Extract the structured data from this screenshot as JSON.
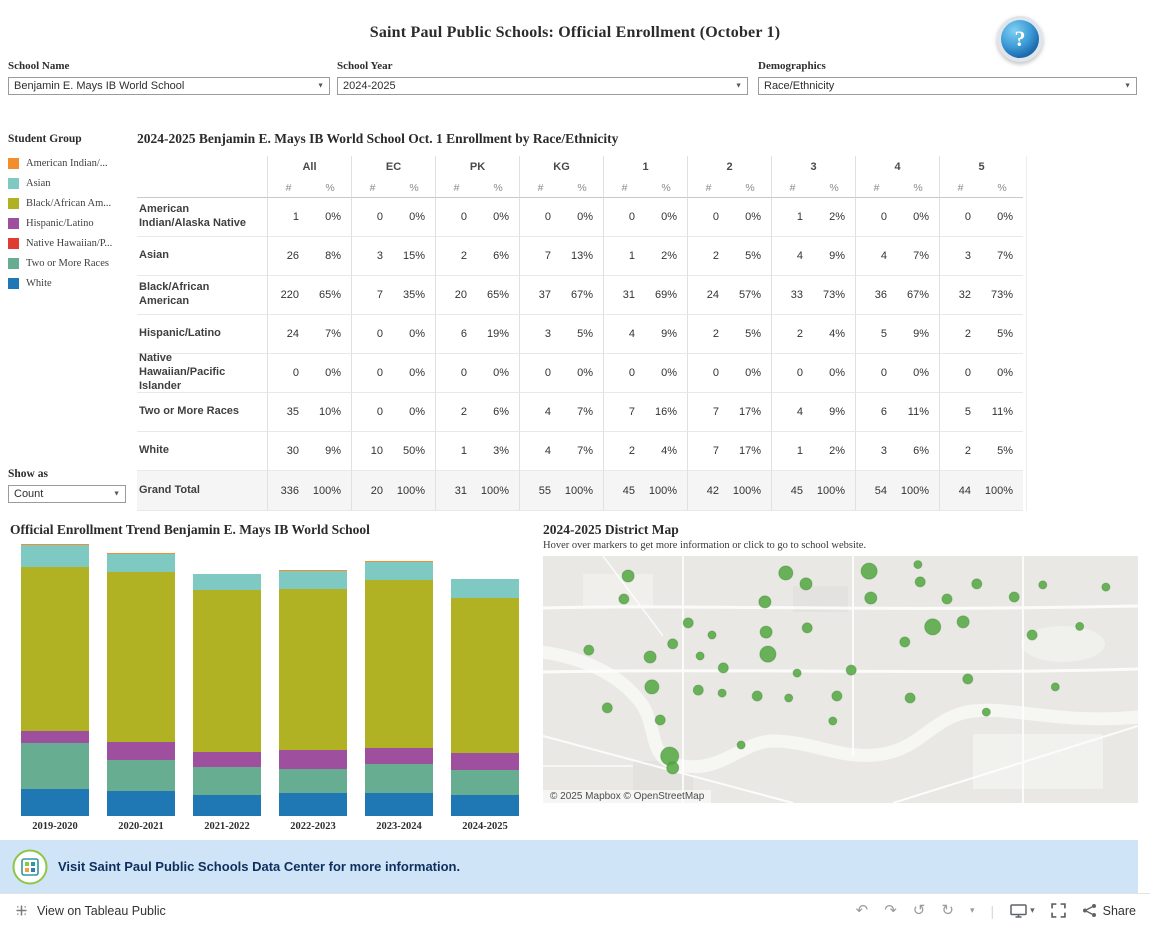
{
  "header": {
    "title": "Saint Paul Public Schools: Official Enrollment (October 1)",
    "help_glyph": "?"
  },
  "ui": {
    "dropdown_caret": "▼"
  },
  "filters": [
    {
      "label": "School Name",
      "value": "Benjamin E. Mays IB World School"
    },
    {
      "label": "School Year",
      "value": "2024-2025"
    },
    {
      "label": "Demographics",
      "value": "Race/Ethnicity"
    }
  ],
  "legend": {
    "title": "Student Group",
    "items": [
      {
        "label": "American Indian/...",
        "color": "#f28e2b"
      },
      {
        "label": "Asian",
        "color": "#7ecac3"
      },
      {
        "label": "Black/African Am...",
        "color": "#b0b123"
      },
      {
        "label": "Hispanic/Latino",
        "color": "#9e4f9d"
      },
      {
        "label": "Native Hawaiian/P...",
        "color": "#e03c31"
      },
      {
        "label": "Two or More Races",
        "color": "#66ad92"
      },
      {
        "label": "White",
        "color": "#1f77b4"
      }
    ],
    "show_as_label": "Show as",
    "show_as_value": "Count"
  },
  "table": {
    "title": "2024-2025 Benjamin E. Mays IB World School Oct. 1 Enrollment by Race/Ethnicity",
    "column_groups": [
      "All",
      "EC",
      "PK",
      "KG",
      "1",
      "2",
      "3",
      "4",
      "5"
    ],
    "sub_columns": [
      "#",
      "%"
    ],
    "rows": [
      {
        "label": "American Indian/Alaska Native",
        "cells": [
          "1",
          "0%",
          "0",
          "0%",
          "0",
          "0%",
          "0",
          "0%",
          "0",
          "0%",
          "0",
          "0%",
          "1",
          "2%",
          "0",
          "0%",
          "0",
          "0%"
        ]
      },
      {
        "label": "Asian",
        "cells": [
          "26",
          "8%",
          "3",
          "15%",
          "2",
          "6%",
          "7",
          "13%",
          "1",
          "2%",
          "2",
          "5%",
          "4",
          "9%",
          "4",
          "7%",
          "3",
          "7%"
        ]
      },
      {
        "label": "Black/African American",
        "cells": [
          "220",
          "65%",
          "7",
          "35%",
          "20",
          "65%",
          "37",
          "67%",
          "31",
          "69%",
          "24",
          "57%",
          "33",
          "73%",
          "36",
          "67%",
          "32",
          "73%"
        ]
      },
      {
        "label": "Hispanic/Latino",
        "cells": [
          "24",
          "7%",
          "0",
          "0%",
          "6",
          "19%",
          "3",
          "5%",
          "4",
          "9%",
          "2",
          "5%",
          "2",
          "4%",
          "5",
          "9%",
          "2",
          "5%"
        ]
      },
      {
        "label": "Native Hawaiian/Pacific Islander",
        "cells": [
          "0",
          "0%",
          "0",
          "0%",
          "0",
          "0%",
          "0",
          "0%",
          "0",
          "0%",
          "0",
          "0%",
          "0",
          "0%",
          "0",
          "0%",
          "0",
          "0%"
        ]
      },
      {
        "label": "Two or More Races",
        "cells": [
          "35",
          "10%",
          "0",
          "0%",
          "2",
          "6%",
          "4",
          "7%",
          "7",
          "16%",
          "7",
          "17%",
          "4",
          "9%",
          "6",
          "11%",
          "5",
          "11%"
        ]
      },
      {
        "label": "White",
        "cells": [
          "30",
          "9%",
          "10",
          "50%",
          "1",
          "3%",
          "4",
          "7%",
          "2",
          "4%",
          "7",
          "17%",
          "1",
          "2%",
          "3",
          "6%",
          "2",
          "5%"
        ]
      },
      {
        "label": "Grand Total",
        "total": true,
        "cells": [
          "336",
          "100%",
          "20",
          "100%",
          "31",
          "100%",
          "55",
          "100%",
          "45",
          "100%",
          "42",
          "100%",
          "45",
          "100%",
          "54",
          "100%",
          "44",
          "100%"
        ]
      }
    ]
  },
  "chart_data": {
    "type": "bar",
    "stacked": true,
    "title": "Official Enrollment Trend Benjamin E. Mays IB World School",
    "categories": [
      "2019-2020",
      "2020-2021",
      "2021-2022",
      "2022-2023",
      "2023-2024",
      "2024-2025"
    ],
    "series": [
      {
        "name": "White",
        "color": "#1f77b4",
        "values": [
          38,
          35,
          30,
          32,
          32,
          30
        ]
      },
      {
        "name": "Two or More Races",
        "color": "#66ad92",
        "values": [
          65,
          45,
          40,
          35,
          42,
          35
        ]
      },
      {
        "name": "Hispanic/Latino",
        "color": "#9e4f9d",
        "values": [
          18,
          25,
          20,
          26,
          22,
          24
        ]
      },
      {
        "name": "Black/African American",
        "color": "#b0b123",
        "values": [
          232,
          240,
          230,
          228,
          238,
          220
        ]
      },
      {
        "name": "Asian",
        "color": "#7ecac3",
        "values": [
          30,
          26,
          22,
          26,
          26,
          26
        ]
      },
      {
        "name": "American Indian/Alaska Native",
        "color": "#f28e2b",
        "values": [
          2,
          2,
          1,
          1,
          1,
          1
        ]
      }
    ],
    "xlabel": "",
    "ylabel": "",
    "legend_position": "left-panel",
    "grid": false
  },
  "map": {
    "title": "2024-2025 District Map",
    "subtitle": "Hover over markers to get more information or click to go to school website.",
    "attribution": "© 2025 Mapbox  © OpenStreetMap",
    "marker_color": "#56a944",
    "markers": [
      [
        14.3,
        8.1,
        6
      ],
      [
        13.6,
        17.4,
        5
      ],
      [
        40.8,
        6.9,
        7
      ],
      [
        44.2,
        11.3,
        6
      ],
      [
        54.8,
        6.1,
        8
      ],
      [
        63.0,
        3.5,
        4
      ],
      [
        63.4,
        10.5,
        5
      ],
      [
        72.9,
        11.3,
        5
      ],
      [
        84.0,
        11.7,
        4
      ],
      [
        94.6,
        12.6,
        4
      ],
      [
        37.3,
        18.6,
        6
      ],
      [
        55.1,
        17.0,
        6
      ],
      [
        67.9,
        17.4,
        5
      ],
      [
        79.2,
        16.6,
        5
      ],
      [
        24.4,
        27.1,
        5
      ],
      [
        28.4,
        32.0,
        4
      ],
      [
        21.8,
        35.6,
        5
      ],
      [
        26.4,
        40.5,
        4
      ],
      [
        37.5,
        30.8,
        6
      ],
      [
        44.4,
        29.1,
        5
      ],
      [
        65.5,
        28.7,
        8
      ],
      [
        70.6,
        26.7,
        6
      ],
      [
        60.8,
        34.8,
        5
      ],
      [
        82.2,
        32.0,
        5
      ],
      [
        90.2,
        28.5,
        4
      ],
      [
        7.7,
        38.1,
        5
      ],
      [
        18.0,
        40.9,
        6
      ],
      [
        37.8,
        39.7,
        8
      ],
      [
        30.3,
        45.3,
        5
      ],
      [
        42.7,
        47.4,
        4
      ],
      [
        51.8,
        46.2,
        5
      ],
      [
        71.4,
        49.8,
        5
      ],
      [
        86.1,
        53.0,
        4
      ],
      [
        18.3,
        53.0,
        7
      ],
      [
        26.1,
        54.3,
        5
      ],
      [
        30.1,
        55.5,
        4
      ],
      [
        36.0,
        56.7,
        5
      ],
      [
        41.3,
        57.5,
        4
      ],
      [
        49.4,
        56.7,
        5
      ],
      [
        61.7,
        57.5,
        5
      ],
      [
        74.5,
        63.2,
        4
      ],
      [
        10.8,
        61.5,
        5
      ],
      [
        19.7,
        66.4,
        5
      ],
      [
        48.7,
        66.8,
        4
      ],
      [
        33.3,
        76.5,
        4
      ],
      [
        21.3,
        81.0,
        9
      ],
      [
        21.8,
        85.8,
        6
      ]
    ]
  },
  "banner": {
    "text": "Visit Saint Paul Public Schools Data Center for more information.",
    "background": "#cfe4f6"
  },
  "footer": {
    "view_label": "View on Tableau Public",
    "share_label": "Share",
    "glyphs": {
      "undo": "↶",
      "redo": "↷",
      "history": "↺",
      "refresh": "↻",
      "caret": "▾"
    }
  }
}
